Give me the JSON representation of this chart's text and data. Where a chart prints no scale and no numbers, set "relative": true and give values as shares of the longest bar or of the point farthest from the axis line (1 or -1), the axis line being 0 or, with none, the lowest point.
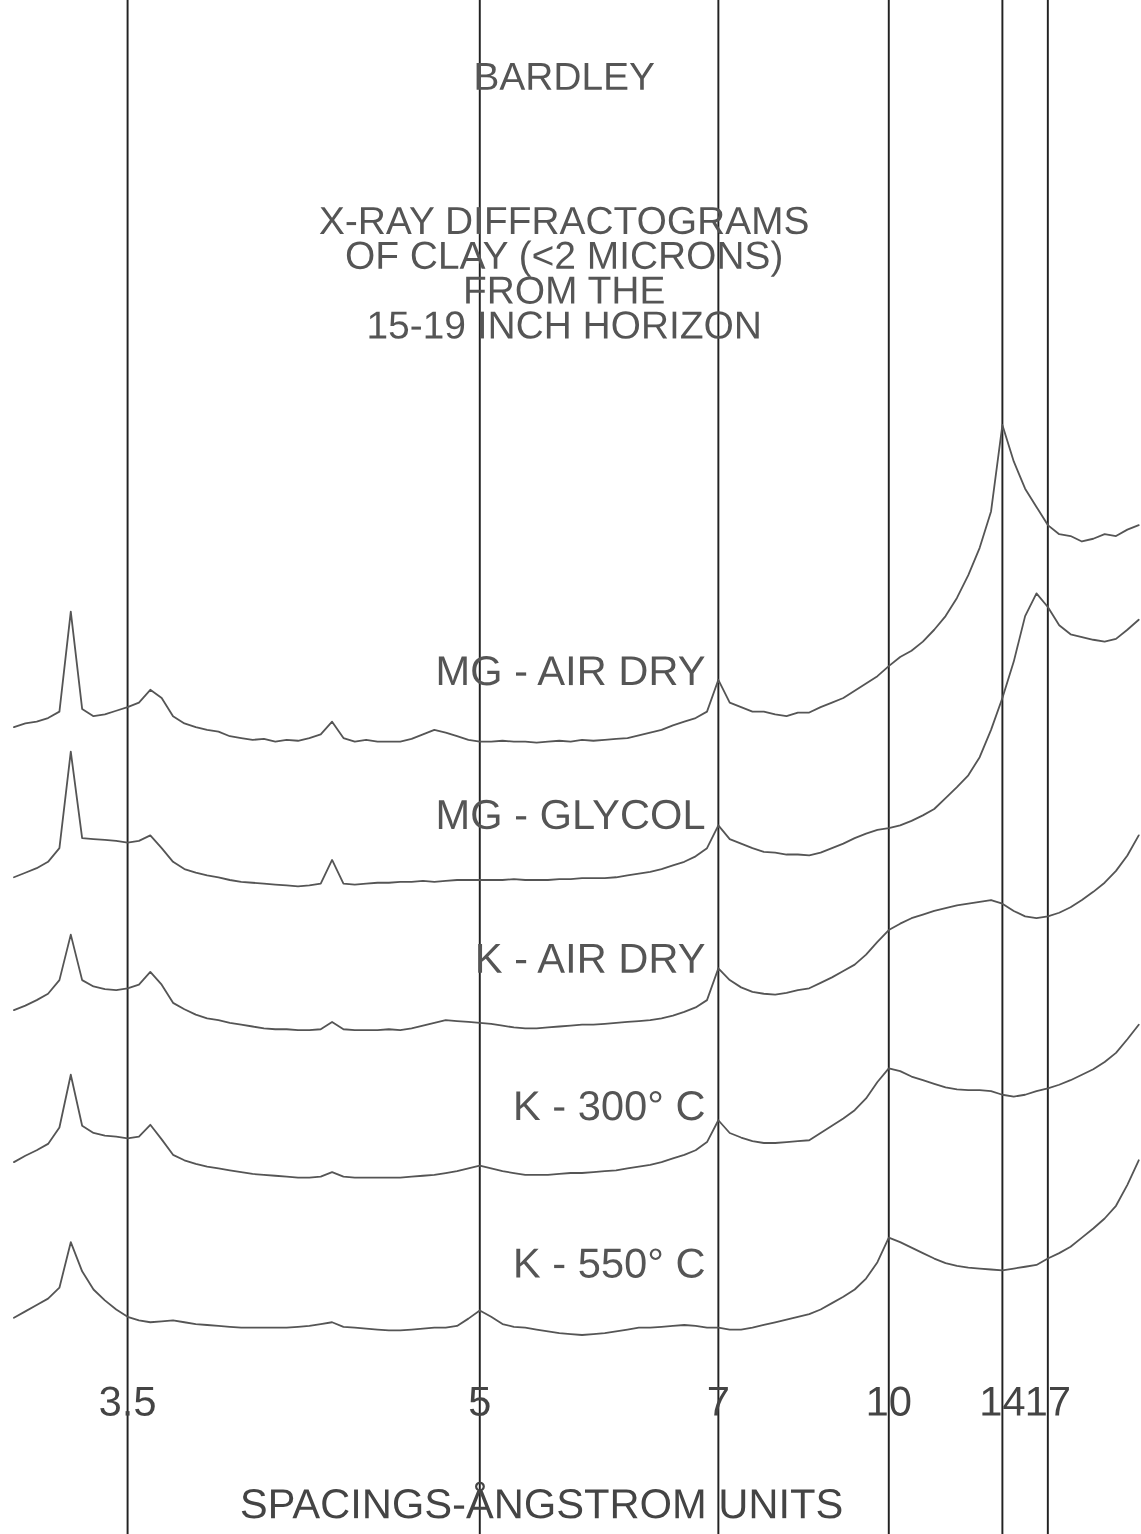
{
  "chart_data": {
    "type": "line",
    "title": "BARDLEY",
    "subtitle": "X-RAY DIFFRACTOGRAMS\nOF CLAY (<2 MICRONS)\nFROM THE\n15-19 INCH HORIZON",
    "xlabel": "SPACINGS-ÅNGSTROM UNITS",
    "relative": true,
    "grid": "x",
    "tick_labels": "x",
    "categories": [
      null,
      null,
      null,
      null,
      null,
      null,
      null,
      null,
      null,
      null,
      "3.5",
      null,
      null,
      null,
      null,
      null,
      null,
      null,
      null,
      null,
      null,
      null,
      null,
      null,
      null,
      null,
      null,
      null,
      null,
      null,
      null,
      null,
      null,
      null,
      null,
      null,
      null,
      null,
      null,
      null,
      null,
      "5",
      null,
      null,
      null,
      null,
      null,
      null,
      null,
      null,
      null,
      null,
      null,
      null,
      null,
      null,
      null,
      null,
      null,
      null,
      null,
      null,
      "7",
      null,
      null,
      null,
      null,
      null,
      null,
      null,
      null,
      null,
      null,
      null,
      null,
      null,
      null,
      "10",
      null,
      null,
      null,
      null,
      null,
      null,
      null,
      null,
      null,
      "14",
      null,
      null,
      null,
      "17",
      null,
      null,
      null,
      null,
      null,
      null,
      null,
      null
    ],
    "series": [
      {
        "name": "MG - AIR DRY",
        "color": "#555555",
        "values": [
          0.668,
          0.672,
          0.674,
          0.678,
          0.685,
          0.795,
          0.688,
          0.68,
          0.682,
          0.686,
          0.69,
          0.695,
          0.709,
          0.7,
          0.68,
          0.672,
          0.668,
          0.665,
          0.663,
          0.658,
          0.656,
          0.654,
          0.655,
          0.652,
          0.654,
          0.653,
          0.656,
          0.66,
          0.674,
          0.656,
          0.652,
          0.654,
          0.652,
          0.652,
          0.652,
          0.655,
          0.66,
          0.665,
          0.662,
          0.658,
          0.654,
          0.652,
          0.652,
          0.653,
          0.652,
          0.652,
          0.651,
          0.652,
          0.653,
          0.652,
          0.654,
          0.653,
          0.654,
          0.655,
          0.656,
          0.659,
          0.662,
          0.665,
          0.67,
          0.674,
          0.678,
          0.685,
          0.72,
          0.695,
          0.69,
          0.685,
          0.685,
          0.682,
          0.68,
          0.684,
          0.684,
          0.69,
          0.695,
          0.7,
          0.708,
          0.716,
          0.724,
          0.735,
          0.745,
          0.752,
          0.762,
          0.775,
          0.79,
          0.81,
          0.835,
          0.865,
          0.905,
          1.0,
          0.96,
          0.93,
          0.91,
          0.89,
          0.88,
          0.878,
          0.872,
          0.875,
          0.88,
          0.878,
          0.885,
          0.89
        ]
      },
      {
        "name": "MG - GLYCOL",
        "color": "#555555",
        "values": [
          0.503,
          0.508,
          0.513,
          0.52,
          0.535,
          0.641,
          0.546,
          0.545,
          0.544,
          0.543,
          0.541,
          0.543,
          0.549,
          0.535,
          0.52,
          0.512,
          0.508,
          0.505,
          0.503,
          0.5,
          0.498,
          0.497,
          0.496,
          0.495,
          0.494,
          0.493,
          0.494,
          0.496,
          0.522,
          0.496,
          0.495,
          0.496,
          0.497,
          0.497,
          0.498,
          0.498,
          0.499,
          0.498,
          0.499,
          0.5,
          0.5,
          0.5,
          0.5,
          0.5,
          0.501,
          0.5,
          0.5,
          0.5,
          0.501,
          0.501,
          0.502,
          0.502,
          0.502,
          0.503,
          0.505,
          0.507,
          0.509,
          0.512,
          0.516,
          0.52,
          0.526,
          0.535,
          0.56,
          0.545,
          0.54,
          0.535,
          0.531,
          0.53,
          0.528,
          0.528,
          0.527,
          0.53,
          0.535,
          0.54,
          0.546,
          0.551,
          0.555,
          0.557,
          0.56,
          0.565,
          0.571,
          0.578,
          0.59,
          0.602,
          0.615,
          0.635,
          0.665,
          0.7,
          0.74,
          0.79,
          0.815,
          0.8,
          0.78,
          0.77,
          0.767,
          0.764,
          0.762,
          0.765,
          0.775,
          0.786
        ]
      },
      {
        "name": "K - AIR DRY",
        "color": "#555555",
        "values": [
          0.357,
          0.362,
          0.368,
          0.375,
          0.39,
          0.44,
          0.39,
          0.383,
          0.38,
          0.379,
          0.381,
          0.385,
          0.399,
          0.385,
          0.365,
          0.358,
          0.352,
          0.348,
          0.346,
          0.343,
          0.341,
          0.339,
          0.337,
          0.336,
          0.336,
          0.335,
          0.335,
          0.336,
          0.344,
          0.336,
          0.335,
          0.335,
          0.335,
          0.336,
          0.335,
          0.337,
          0.34,
          0.343,
          0.346,
          0.345,
          0.344,
          0.343,
          0.342,
          0.34,
          0.338,
          0.337,
          0.337,
          0.338,
          0.339,
          0.34,
          0.341,
          0.341,
          0.342,
          0.343,
          0.344,
          0.345,
          0.346,
          0.348,
          0.351,
          0.355,
          0.36,
          0.368,
          0.403,
          0.39,
          0.382,
          0.377,
          0.375,
          0.374,
          0.376,
          0.379,
          0.381,
          0.387,
          0.393,
          0.4,
          0.407,
          0.418,
          0.432,
          0.445,
          0.452,
          0.458,
          0.462,
          0.466,
          0.469,
          0.472,
          0.474,
          0.476,
          0.478,
          0.474,
          0.466,
          0.46,
          0.458,
          0.46,
          0.464,
          0.47,
          0.478,
          0.487,
          0.497,
          0.51,
          0.527,
          0.549
        ]
      },
      {
        "name": "K - 300° C",
        "color": "#555555",
        "values": [
          0.19,
          0.197,
          0.203,
          0.21,
          0.228,
          0.286,
          0.23,
          0.222,
          0.219,
          0.218,
          0.216,
          0.218,
          0.231,
          0.215,
          0.198,
          0.192,
          0.188,
          0.185,
          0.183,
          0.181,
          0.179,
          0.177,
          0.176,
          0.175,
          0.174,
          0.173,
          0.173,
          0.174,
          0.179,
          0.174,
          0.173,
          0.173,
          0.173,
          0.173,
          0.173,
          0.174,
          0.175,
          0.176,
          0.178,
          0.18,
          0.183,
          0.186,
          0.183,
          0.18,
          0.178,
          0.176,
          0.176,
          0.176,
          0.177,
          0.178,
          0.178,
          0.179,
          0.18,
          0.181,
          0.183,
          0.185,
          0.187,
          0.19,
          0.194,
          0.198,
          0.203,
          0.212,
          0.236,
          0.222,
          0.217,
          0.213,
          0.211,
          0.211,
          0.212,
          0.213,
          0.214,
          0.222,
          0.23,
          0.238,
          0.247,
          0.26,
          0.278,
          0.293,
          0.29,
          0.284,
          0.28,
          0.276,
          0.272,
          0.27,
          0.269,
          0.269,
          0.268,
          0.264,
          0.262,
          0.264,
          0.268,
          0.271,
          0.275,
          0.28,
          0.286,
          0.292,
          0.3,
          0.31,
          0.325,
          0.341
        ]
      },
      {
        "name": "K - 550° C",
        "color": "#555555",
        "values": [
          0.019,
          0.026,
          0.033,
          0.04,
          0.052,
          0.102,
          0.07,
          0.05,
          0.038,
          0.028,
          0.02,
          0.016,
          0.014,
          0.015,
          0.016,
          0.014,
          0.012,
          0.011,
          0.01,
          0.009,
          0.008,
          0.008,
          0.008,
          0.008,
          0.008,
          0.009,
          0.01,
          0.012,
          0.014,
          0.009,
          0.008,
          0.007,
          0.006,
          0.005,
          0.005,
          0.006,
          0.007,
          0.008,
          0.008,
          0.01,
          0.018,
          0.027,
          0.02,
          0.012,
          0.009,
          0.008,
          0.006,
          0.004,
          0.002,
          0.001,
          0.0,
          0.001,
          0.002,
          0.004,
          0.006,
          0.008,
          0.008,
          0.009,
          0.01,
          0.011,
          0.01,
          0.008,
          0.008,
          0.006,
          0.006,
          0.008,
          0.011,
          0.014,
          0.017,
          0.02,
          0.023,
          0.028,
          0.035,
          0.042,
          0.05,
          0.062,
          0.08,
          0.107,
          0.102,
          0.096,
          0.09,
          0.084,
          0.079,
          0.076,
          0.074,
          0.073,
          0.072,
          0.071,
          0.073,
          0.075,
          0.077,
          0.084,
          0.09,
          0.097,
          0.107,
          0.117,
          0.128,
          0.142,
          0.165,
          0.192
        ]
      }
    ]
  }
}
